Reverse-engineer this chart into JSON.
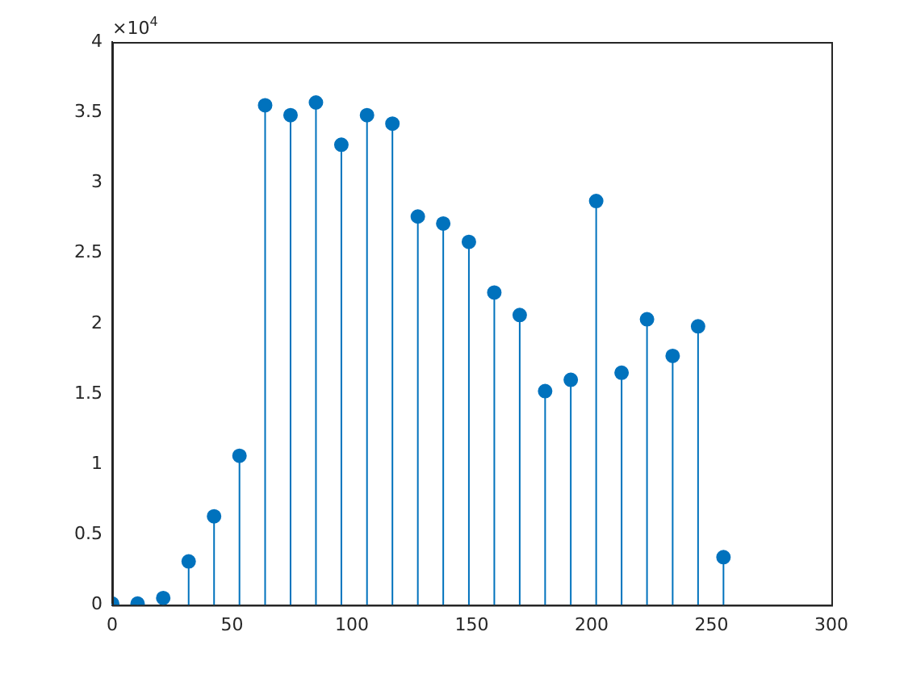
{
  "chart_data": {
    "type": "lollipop",
    "x": [
      0,
      10.6,
      21.3,
      31.9,
      42.5,
      53.1,
      63.8,
      74.4,
      85,
      95.6,
      106.3,
      116.9,
      127.5,
      138.1,
      148.8,
      159.4,
      170,
      180.6,
      191.3,
      201.9,
      212.5,
      223.1,
      233.8,
      244.4,
      255
    ],
    "values": [
      0.01,
      0.01,
      0.05,
      0.31,
      0.63,
      1.06,
      3.55,
      3.48,
      3.57,
      3.27,
      3.48,
      3.42,
      2.76,
      2.71,
      2.58,
      2.22,
      2.06,
      1.52,
      1.6,
      2.87,
      1.65,
      2.03,
      1.77,
      1.98,
      0.34
    ],
    "color": "#0072bd",
    "marker": "circle",
    "xlim": [
      0,
      300
    ],
    "xticks": [
      0,
      50,
      100,
      150,
      200,
      250,
      300
    ],
    "ylim": [
      0,
      4
    ],
    "yticks": [
      0,
      0.5,
      1,
      1.5,
      2,
      2.5,
      3,
      3.5,
      4
    ],
    "grid": false,
    "legend": false,
    "annotations": [
      "×10$^{4}$"
    ]
  }
}
